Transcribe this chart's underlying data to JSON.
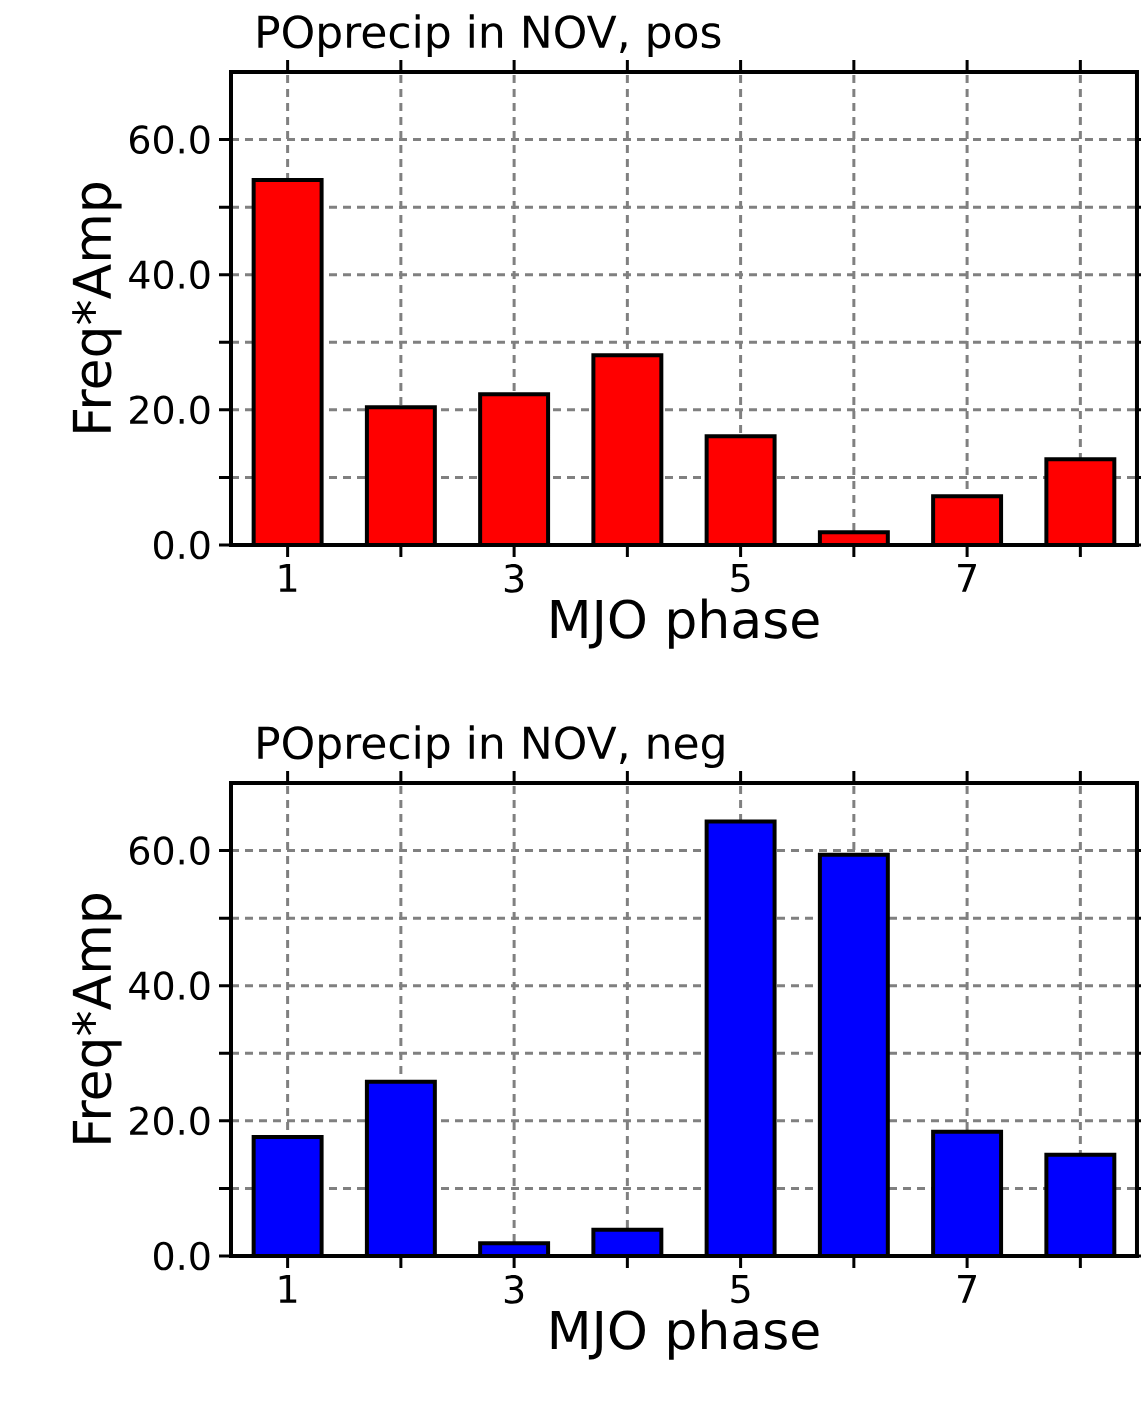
{
  "chart_data": [
    {
      "type": "bar",
      "title": "POprecip in NOV, pos",
      "xlabel": "MJO phase",
      "ylabel": "Freq*Amp",
      "x": [
        1,
        2,
        3,
        4,
        5,
        6,
        7,
        8
      ],
      "values": [
        54,
        20.4,
        22.3,
        28.1,
        16.1,
        1.9,
        7.2,
        12.7
      ],
      "color": "#ff0000",
      "xlim": [
        0.5,
        8.5
      ],
      "ylim": [
        0,
        70
      ],
      "xticks": [
        1,
        {
          "value": 2,
          "label": null
        },
        3,
        {
          "value": 4,
          "label": null
        },
        5,
        {
          "value": 6,
          "label": null
        },
        7,
        {
          "value": 8,
          "label": null
        }
      ],
      "yticks": [
        {
          "value": 0,
          "label": "0.0"
        },
        {
          "value": 10,
          "label": null
        },
        {
          "value": 20,
          "label": "20.0"
        },
        {
          "value": 30,
          "label": null
        },
        {
          "value": 40,
          "label": "40.0"
        },
        {
          "value": 50,
          "label": null
        },
        {
          "value": 60,
          "label": "60.0"
        }
      ],
      "grid": true
    },
    {
      "type": "bar",
      "title": "POprecip in NOV, neg",
      "xlabel": "MJO phase",
      "ylabel": "Freq*Amp",
      "x": [
        1,
        2,
        3,
        4,
        5,
        6,
        7,
        8
      ],
      "values": [
        17.6,
        25.8,
        1.9,
        3.9,
        64.3,
        59.4,
        18.4,
        15.0
      ],
      "color": "#0000ff",
      "xlim": [
        0.5,
        8.5
      ],
      "ylim": [
        0,
        70
      ],
      "xticks": [
        1,
        {
          "value": 2,
          "label": null
        },
        3,
        {
          "value": 4,
          "label": null
        },
        5,
        {
          "value": 6,
          "label": null
        },
        7,
        {
          "value": 8,
          "label": null
        }
      ],
      "yticks": [
        {
          "value": 0,
          "label": "0.0"
        },
        {
          "value": 10,
          "label": null
        },
        {
          "value": 20,
          "label": "20.0"
        },
        {
          "value": 30,
          "label": null
        },
        {
          "value": 40,
          "label": "40.0"
        },
        {
          "value": 50,
          "label": null
        },
        {
          "value": 60,
          "label": "60.0"
        }
      ],
      "grid": true
    }
  ]
}
